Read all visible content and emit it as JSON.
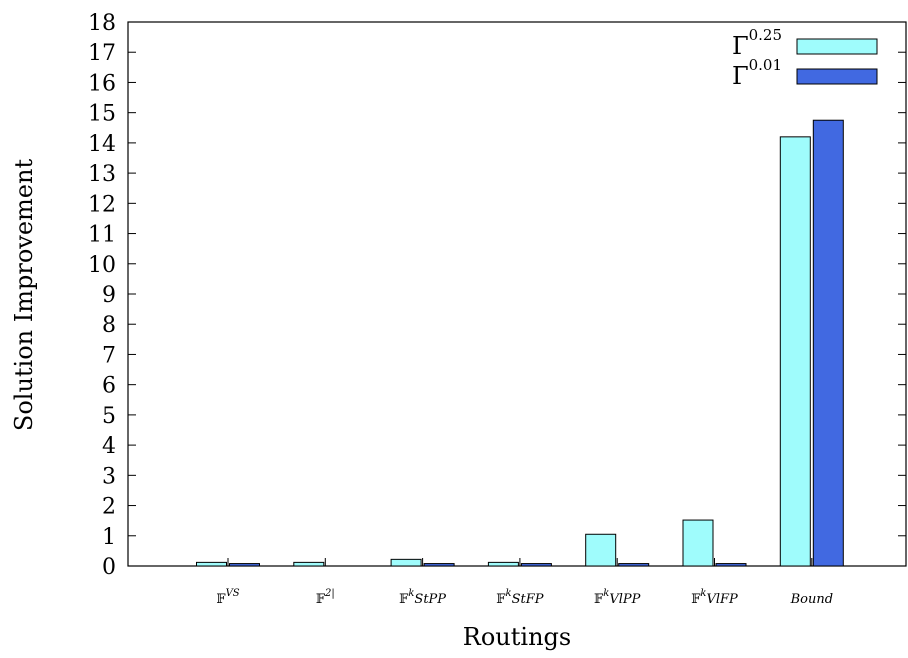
{
  "chart_data": {
    "type": "bar",
    "xlabel": "Routings",
    "ylabel": "Solution Improvement",
    "ylim": [
      0,
      18
    ],
    "yticks": [
      0,
      1,
      2,
      3,
      4,
      5,
      6,
      7,
      8,
      9,
      10,
      11,
      12,
      13,
      14,
      15,
      16,
      17,
      18
    ],
    "grid": false,
    "legend_position": "top-right",
    "categories": [
      {
        "base": "𝔽",
        "sup": "VS"
      },
      {
        "base": "𝔽",
        "sup": "2|"
      },
      {
        "base": "𝔽",
        "sup": "k",
        "tail": "StPP"
      },
      {
        "base": "𝔽",
        "sup": "k",
        "tail": "StFP"
      },
      {
        "base": "𝔽",
        "sup": "k",
        "tail": "VlPP"
      },
      {
        "base": "𝔽",
        "sup": "k",
        "tail": "VlFP"
      },
      {
        "base": "Bound"
      }
    ],
    "series": [
      {
        "name_base": "Γ",
        "name_sup": "0.25",
        "color": "#9ffcfc",
        "values": [
          0.12,
          0.12,
          0.22,
          0.12,
          1.05,
          1.52,
          14.2
        ]
      },
      {
        "name_base": "Γ",
        "name_sup": "0.01",
        "color": "#4169e1",
        "values": [
          0.08,
          0.0,
          0.08,
          0.08,
          0.08,
          0.08,
          14.75
        ]
      }
    ]
  }
}
